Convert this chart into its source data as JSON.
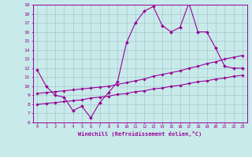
{
  "xlabel": "Windchill (Refroidissement éolien,°C)",
  "x_values": [
    0,
    1,
    2,
    3,
    4,
    5,
    6,
    7,
    8,
    9,
    10,
    11,
    12,
    13,
    14,
    15,
    16,
    17,
    18,
    19,
    20,
    21,
    22,
    23
  ],
  "line1_y": [
    11.8,
    10.0,
    9.0,
    8.8,
    7.3,
    7.8,
    6.5,
    8.2,
    9.3,
    10.5,
    14.8,
    17.0,
    18.3,
    18.8,
    16.7,
    16.0,
    16.5,
    19.2,
    16.0,
    16.0,
    14.2,
    12.2,
    12.0,
    12.0
  ],
  "line2_y": [
    9.2,
    9.3,
    9.4,
    9.5,
    9.6,
    9.7,
    9.8,
    9.9,
    10.0,
    10.2,
    10.4,
    10.6,
    10.8,
    11.1,
    11.3,
    11.5,
    11.7,
    12.0,
    12.2,
    12.5,
    12.7,
    13.0,
    13.2,
    13.4
  ],
  "line3_y": [
    8.0,
    8.1,
    8.2,
    8.3,
    8.4,
    8.5,
    8.7,
    8.8,
    8.9,
    9.1,
    9.2,
    9.4,
    9.5,
    9.7,
    9.8,
    10.0,
    10.1,
    10.3,
    10.5,
    10.6,
    10.8,
    10.9,
    11.1,
    11.2
  ],
  "line_color": "#990099",
  "bg_color": "#c8eaea",
  "grid_color": "#a8caca",
  "ylim": [
    6,
    19
  ],
  "xlim": [
    -0.5,
    23.5
  ],
  "yticks": [
    6,
    7,
    8,
    9,
    10,
    11,
    12,
    13,
    14,
    15,
    16,
    17,
    18,
    19
  ],
  "xticks": [
    0,
    1,
    2,
    3,
    4,
    5,
    6,
    7,
    8,
    9,
    10,
    11,
    12,
    13,
    14,
    15,
    16,
    17,
    18,
    19,
    20,
    21,
    22,
    23
  ]
}
